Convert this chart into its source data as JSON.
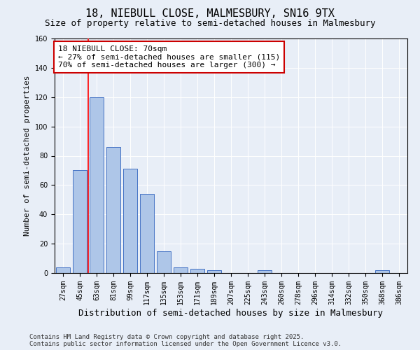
{
  "title": "18, NIEBULL CLOSE, MALMESBURY, SN16 9TX",
  "subtitle": "Size of property relative to semi-detached houses in Malmesbury",
  "xlabel": "Distribution of semi-detached houses by size in Malmesbury",
  "ylabel": "Number of semi-detached properties",
  "categories": [
    "27sqm",
    "45sqm",
    "63sqm",
    "81sqm",
    "99sqm",
    "117sqm",
    "135sqm",
    "153sqm",
    "171sqm",
    "189sqm",
    "207sqm",
    "225sqm",
    "243sqm",
    "260sqm",
    "278sqm",
    "296sqm",
    "314sqm",
    "332sqm",
    "350sqm",
    "368sqm",
    "386sqm"
  ],
  "values": [
    4,
    70,
    120,
    86,
    71,
    54,
    15,
    4,
    3,
    2,
    0,
    0,
    2,
    0,
    0,
    0,
    0,
    0,
    0,
    2,
    0
  ],
  "bar_color": "#aec6e8",
  "bar_edge_color": "#4472c4",
  "red_line_x": 1.5,
  "annotation_title": "18 NIEBULL CLOSE: 70sqm",
  "annotation_line1": "← 27% of semi-detached houses are smaller (115)",
  "annotation_line2": "70% of semi-detached houses are larger (300) →",
  "annotation_box_color": "#ffffff",
  "annotation_box_edge_color": "#cc0000",
  "ylim": [
    0,
    160
  ],
  "yticks": [
    0,
    20,
    40,
    60,
    80,
    100,
    120,
    140,
    160
  ],
  "background_color": "#e8eef7",
  "plot_bg_color": "#e8eef7",
  "footer_line1": "Contains HM Land Registry data © Crown copyright and database right 2025.",
  "footer_line2": "Contains public sector information licensed under the Open Government Licence v3.0.",
  "title_fontsize": 11,
  "subtitle_fontsize": 9,
  "xlabel_fontsize": 9,
  "ylabel_fontsize": 8,
  "tick_fontsize": 7,
  "annotation_fontsize": 8,
  "footer_fontsize": 6.5
}
